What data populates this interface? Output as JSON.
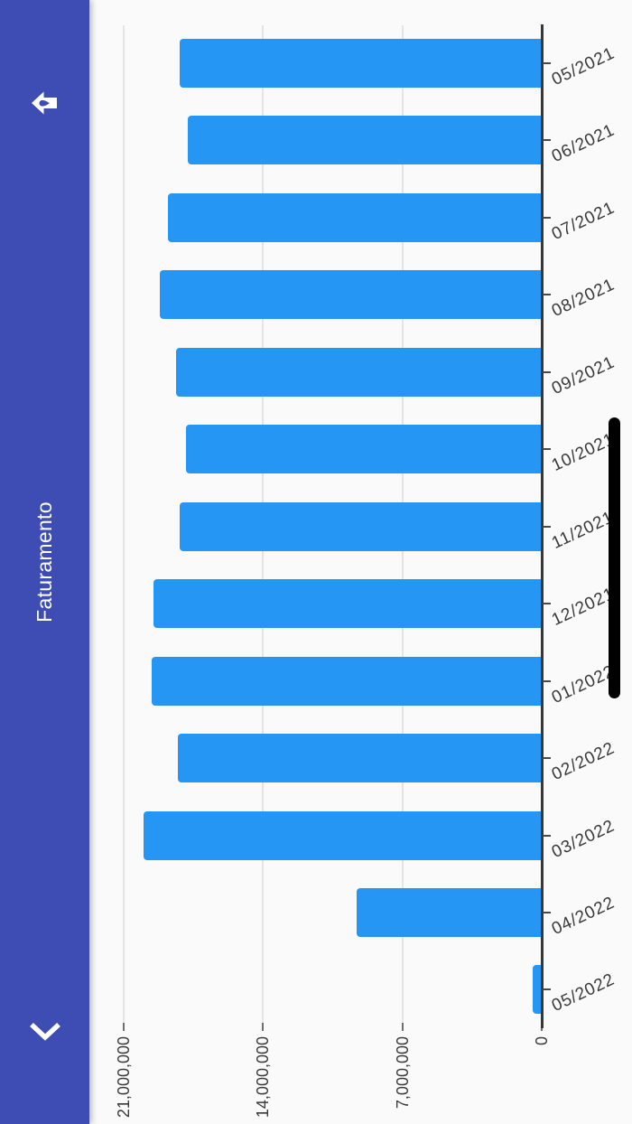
{
  "app_bar": {
    "title": "Faturamento",
    "left_icon": "chevron-back-icon",
    "right_icon": "back-arrow-drop-icon"
  },
  "chart_data": {
    "type": "bar",
    "title": "Faturamento",
    "xlabel": "",
    "ylabel": "",
    "categories": [
      "05/2022",
      "04/2022",
      "03/2022",
      "02/2022",
      "01/2022",
      "12/2021",
      "11/2021",
      "10/2021",
      "09/2021",
      "08/2021",
      "07/2021",
      "06/2021",
      "05/2021"
    ],
    "values": [
      450000,
      9300000,
      20000000,
      18300000,
      19600000,
      19500000,
      18200000,
      17850000,
      18350000,
      19200000,
      18800000,
      17800000,
      18200000
    ],
    "tick_values": [
      0,
      7000000,
      14000000,
      21000000
    ],
    "tick_labels": [
      "0",
      "7,000,000",
      "14,000,000",
      "21,000,000"
    ],
    "ylim": [
      0,
      21000000
    ],
    "grid": true,
    "legend": false,
    "bar_color": "#2596F3",
    "note_truncated_labels": [
      "10/202",
      "11/202",
      "12/202",
      "01/202"
    ]
  },
  "scrollbar": {
    "present": true
  },
  "colors": {
    "app_bar": "#3E4DB4",
    "title_text": "#FFFFFF",
    "background": "#FAFAFA",
    "bar": "#2596F3",
    "axis_line": "#373737",
    "gridline": "#E4E4E4",
    "tick": "#6E6E6E",
    "tick2": "#4A4A4A",
    "label_text": "#3A3A3A",
    "scrollbar": "#000000"
  }
}
